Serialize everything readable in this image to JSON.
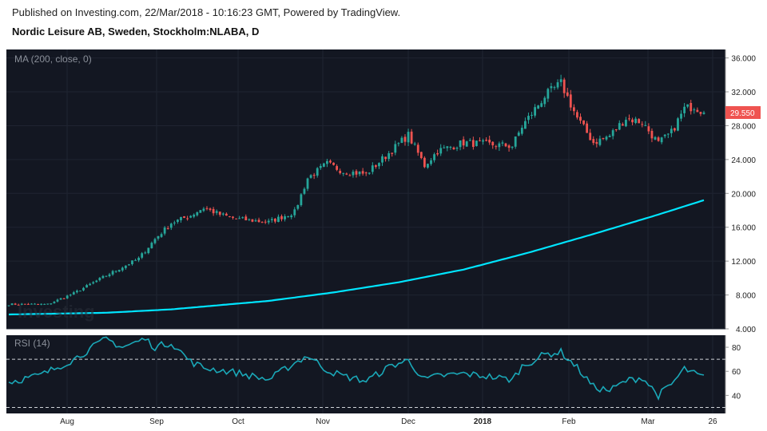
{
  "header": {
    "published": "Published on Investing.com, 22/Mar/2018 - 10:16:23 GMT, Powered by TradingView.",
    "symbol": "Nordic Leisure AB, Sweden, Stockholm:NLABA, D"
  },
  "watermark": "Investing",
  "colors": {
    "background": "#131722",
    "up": "#26a69a",
    "down": "#ef5350",
    "ma": "#00e5ff",
    "rsi": "#1aa8b8",
    "price_badge": "#ef5350"
  },
  "chart_data": [
    {
      "type": "candlestick",
      "label": "MA (200, close, 0)",
      "ylim": [
        4,
        37
      ],
      "y_ticks": [
        "4.000",
        "8.000",
        "12.000",
        "16.000",
        "20.000",
        "24.000",
        "28.000",
        "32.000",
        "36.000"
      ],
      "y_tick_values": [
        4,
        8,
        12,
        16,
        20,
        24,
        28,
        32,
        36
      ],
      "x_tick_labels": [
        "Aug",
        "Sep",
        "Oct",
        "Nov",
        "Dec",
        "2018",
        "Feb",
        "Mar",
        "26"
      ],
      "last_price": "29.550",
      "close_anchors": [
        [
          0,
          6.9
        ],
        [
          12,
          6.9
        ],
        [
          20,
          8.2
        ],
        [
          30,
          10.3
        ],
        [
          40,
          12.3
        ],
        [
          45,
          14.6
        ],
        [
          50,
          16.5
        ],
        [
          56,
          17.4
        ],
        [
          60,
          18.3
        ],
        [
          65,
          17.5
        ],
        [
          70,
          17.0
        ],
        [
          80,
          16.6
        ],
        [
          88,
          17.8
        ],
        [
          92,
          21.8
        ],
        [
          98,
          23.5
        ],
        [
          103,
          22.6
        ],
        [
          110,
          22.3
        ],
        [
          118,
          25.1
        ],
        [
          123,
          26.9
        ],
        [
          128,
          23.3
        ],
        [
          132,
          25.0
        ],
        [
          140,
          26.0
        ],
        [
          147,
          25.8
        ],
        [
          155,
          25.6
        ],
        [
          158,
          27.9
        ],
        [
          165,
          31.5
        ],
        [
          170,
          33.0
        ],
        [
          175,
          28.9
        ],
        [
          180,
          26.0
        ],
        [
          185,
          26.8
        ],
        [
          190,
          28.9
        ],
        [
          195,
          28.4
        ],
        [
          200,
          25.9
        ],
        [
          204,
          27.2
        ],
        [
          208,
          30.0
        ],
        [
          211,
          30.3
        ],
        [
          214,
          29.55
        ]
      ],
      "ma_anchors": [
        [
          0,
          5.7
        ],
        [
          30,
          5.9
        ],
        [
          50,
          6.3
        ],
        [
          80,
          7.3
        ],
        [
          100,
          8.3
        ],
        [
          120,
          9.5
        ],
        [
          140,
          11.0
        ],
        [
          160,
          13.0
        ],
        [
          180,
          15.2
        ],
        [
          200,
          17.5
        ],
        [
          214,
          19.2
        ]
      ]
    },
    {
      "type": "line",
      "label": "RSI (14)",
      "ylim": [
        25,
        90
      ],
      "y_ticks": [
        "40",
        "60",
        "80"
      ],
      "y_tick_values": [
        40,
        60,
        80
      ],
      "bands": [
        30,
        70
      ],
      "anchors": [
        [
          0,
          51
        ],
        [
          10,
          57
        ],
        [
          20,
          70
        ],
        [
          30,
          87
        ],
        [
          35,
          80
        ],
        [
          42,
          87
        ],
        [
          45,
          80
        ],
        [
          50,
          84
        ],
        [
          56,
          68
        ],
        [
          60,
          63
        ],
        [
          70,
          59
        ],
        [
          80,
          53
        ],
        [
          88,
          67
        ],
        [
          92,
          73
        ],
        [
          98,
          61
        ],
        [
          103,
          56
        ],
        [
          110,
          52
        ],
        [
          118,
          65
        ],
        [
          123,
          69
        ],
        [
          128,
          53
        ],
        [
          132,
          56
        ],
        [
          140,
          58
        ],
        [
          147,
          56
        ],
        [
          155,
          53
        ],
        [
          158,
          64
        ],
        [
          165,
          74
        ],
        [
          170,
          76
        ],
        [
          175,
          63
        ],
        [
          180,
          47
        ],
        [
          185,
          44
        ],
        [
          190,
          52
        ],
        [
          195,
          55
        ],
        [
          200,
          40
        ],
        [
          204,
          49
        ],
        [
          208,
          62
        ],
        [
          211,
          58
        ],
        [
          214,
          55
        ]
      ]
    }
  ]
}
